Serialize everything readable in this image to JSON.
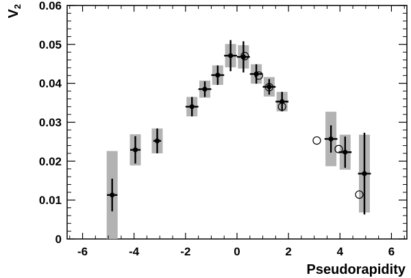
{
  "chart_data": {
    "type": "scatter",
    "title": "",
    "xlabel": "Pseudorapidity",
    "ylabel": "V",
    "ylabel_sub": "2",
    "xlim": [
      -6.6,
      6.6
    ],
    "ylim": [
      0,
      0.06
    ],
    "x_ticks": [
      -6,
      -4,
      -2,
      0,
      2,
      4,
      6
    ],
    "x_tick_labels": [
      "-6",
      "-4",
      "-2",
      "0",
      "2",
      "4",
      "6"
    ],
    "y_ticks": [
      0,
      0.01,
      0.02,
      0.03,
      0.04,
      0.05,
      0.06
    ],
    "y_tick_labels": [
      "0",
      "0.01",
      "0.02",
      "0.03",
      "0.04",
      "0.05",
      "0.06"
    ],
    "grid": false,
    "series": [
      {
        "marker": "filled-circle",
        "color": "#000000",
        "box_color": "#b3b3b3",
        "points": [
          {
            "x": -4.85,
            "y": 0.0113,
            "xerr": 0.2,
            "yerr": 0.0042,
            "syst": 0.0113
          },
          {
            "x": -3.95,
            "y": 0.0229,
            "xerr": 0.2,
            "yerr": 0.0035,
            "syst": 0.004
          },
          {
            "x": -3.1,
            "y": 0.0252,
            "xerr": 0.15,
            "yerr": 0.0032,
            "syst": 0.0032
          },
          {
            "x": -1.75,
            "y": 0.034,
            "xerr": 0.25,
            "yerr": 0.0025,
            "syst": 0.0025
          },
          {
            "x": -1.25,
            "y": 0.0385,
            "xerr": 0.25,
            "yerr": 0.002,
            "syst": 0.0022
          },
          {
            "x": -0.75,
            "y": 0.0421,
            "xerr": 0.25,
            "yerr": 0.0025,
            "syst": 0.0025
          },
          {
            "x": -0.25,
            "y": 0.0471,
            "xerr": 0.25,
            "yerr": 0.004,
            "syst": 0.003
          },
          {
            "x": 0.25,
            "y": 0.0468,
            "xerr": 0.25,
            "yerr": 0.004,
            "syst": 0.003
          },
          {
            "x": 0.75,
            "y": 0.0424,
            "xerr": 0.25,
            "yerr": 0.0025,
            "syst": 0.0025
          },
          {
            "x": 1.25,
            "y": 0.0391,
            "xerr": 0.25,
            "yerr": 0.002,
            "syst": 0.0025
          },
          {
            "x": 1.75,
            "y": 0.0353,
            "xerr": 0.25,
            "yerr": 0.0025,
            "syst": 0.0025
          },
          {
            "x": 3.65,
            "y": 0.0257,
            "xerr": 0.25,
            "yerr": 0.0035,
            "syst": 0.007
          },
          {
            "x": 4.2,
            "y": 0.0223,
            "xerr": 0.25,
            "yerr": 0.004,
            "syst": 0.0045
          },
          {
            "x": 4.95,
            "y": 0.0168,
            "xerr": 0.25,
            "yerr": 0.0105,
            "syst": 0.01
          }
        ]
      },
      {
        "marker": "open-circle",
        "color": "#000000",
        "points": [
          {
            "x": 0.3,
            "y": 0.047
          },
          {
            "x": 0.85,
            "y": 0.042
          },
          {
            "x": 1.25,
            "y": 0.039
          },
          {
            "x": 1.75,
            "y": 0.034
          },
          {
            "x": 3.1,
            "y": 0.0253
          },
          {
            "x": 3.95,
            "y": 0.0231
          },
          {
            "x": 4.75,
            "y": 0.0114
          }
        ]
      }
    ]
  }
}
